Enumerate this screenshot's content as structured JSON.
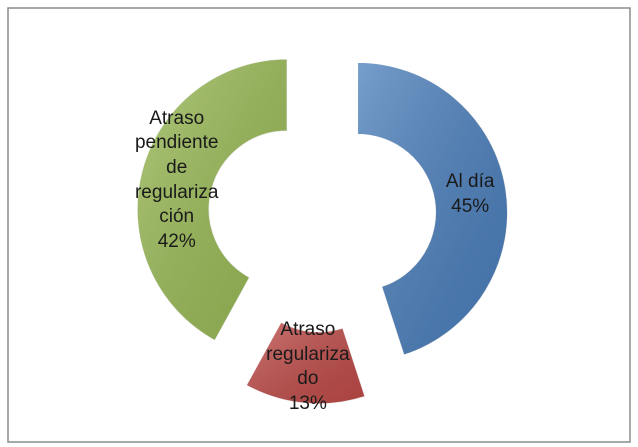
{
  "chart_data": {
    "type": "donut",
    "categories": [
      "Al día",
      "Atraso regularizado",
      "Atraso pendiente de regularización"
    ],
    "values": [
      45,
      13,
      42
    ],
    "value_labels": [
      "45%",
      "13%",
      "42%"
    ],
    "colors": [
      "#4a7ebb",
      "#be4b48",
      "#98b954"
    ]
  }
}
